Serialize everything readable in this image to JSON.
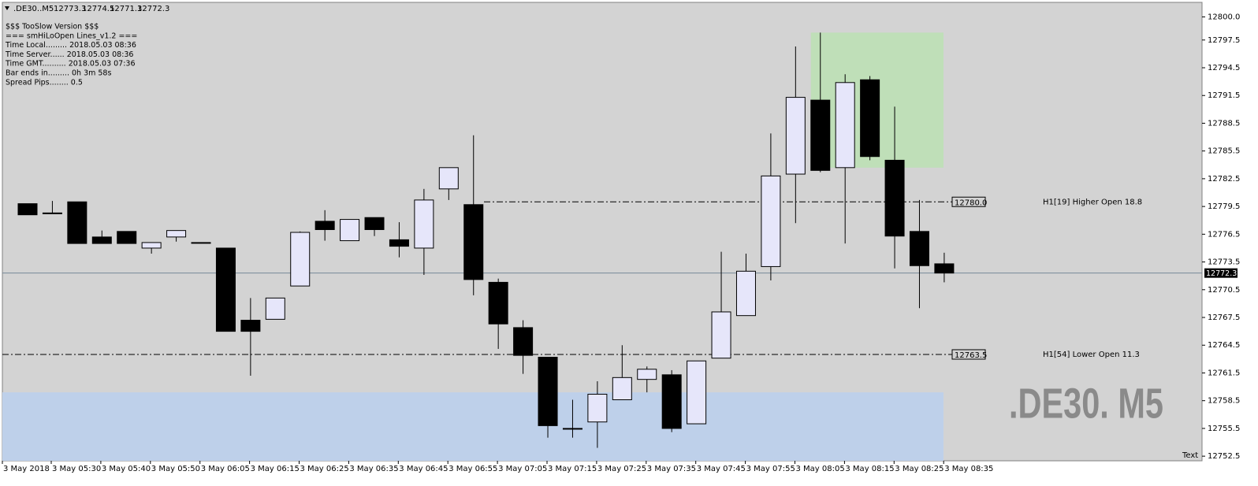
{
  "chart_data": {
    "type": "candlestick",
    "symbol": ".DE30..M5",
    "watermark": ".DE30. M5",
    "corner_text": "Text",
    "info_lines": [
      "$$$ TooSlow Version $$$",
      "=== smHiLoOpen Lines_v1.2 ===",
      "Time Local......... 2018.05.03 08:36",
      "Time Server...... 2018.05.03 08:36",
      "Time GMT.......... 2018.05.03 07:36",
      "Bar ends in......... 0h 3m 58s",
      "Spread Pips........ 0.5"
    ],
    "x_labels": [
      "3 May 2018",
      "3 May 05:30",
      "3 May 05:40",
      "3 May 05:50",
      "3 May 06:05",
      "3 May 06:15",
      "3 May 06:25",
      "3 May 06:35",
      "3 May 06:45",
      "3 May 06:55",
      "3 May 07:05",
      "3 May 07:15",
      "3 May 07:25",
      "3 May 07:35",
      "3 May 07:45",
      "3 May 07:55",
      "3 May 08:05",
      "3 May 08:15",
      "3 May 08:25",
      "3 May 08:35"
    ],
    "open": [
      12779.8,
      12778.8,
      12780.0,
      12776.2,
      12776.8,
      12775.0,
      12776.2,
      12775.6,
      12775.0,
      12767.2,
      12767.3,
      12770.9,
      12777.9,
      12775.8,
      12778.3,
      12775.9,
      12775.0,
      12781.4,
      12779.7,
      12771.3,
      12766.4,
      12763.2,
      12755.5,
      12756.2,
      12758.6,
      12760.8,
      12761.3,
      12756.0,
      12763.1,
      12767.7,
      12773.0,
      12783.0,
      12791.0,
      12783.7,
      12793.2,
      12784.5,
      12776.8,
      12773.3
    ],
    "high": [
      12779.8,
      12780.1,
      12780.0,
      12776.9,
      12776.8,
      12775.6,
      12776.9,
      12775.6,
      12775.0,
      12769.6,
      12769.6,
      12776.8,
      12779.1,
      12778.1,
      12778.3,
      12777.8,
      12781.4,
      12783.7,
      12787.2,
      12771.7,
      12767.2,
      12763.2,
      12758.6,
      12760.6,
      12764.5,
      12762.2,
      12761.8,
      12762.8,
      12774.6,
      12774.4,
      12787.4,
      12796.8,
      12798.3,
      12793.8,
      12793.6,
      12790.3,
      12780.2,
      12774.5
    ],
    "low": [
      12778.6,
      12778.8,
      12775.5,
      12775.5,
      12775.5,
      12774.4,
      12775.7,
      12775.6,
      12766.0,
      12761.2,
      12767.3,
      12770.9,
      12775.8,
      12775.8,
      12776.3,
      12774.0,
      12772.1,
      12780.2,
      12769.9,
      12764.1,
      12761.4,
      12754.5,
      12754.5,
      12753.4,
      12758.6,
      12759.4,
      12755.1,
      12756.0,
      12763.1,
      12767.7,
      12771.5,
      12777.7,
      12783.2,
      12775.5,
      12784.5,
      12772.8,
      12768.5,
      12771.3
    ],
    "close": [
      12778.6,
      12778.8,
      12775.5,
      12775.5,
      12775.5,
      12775.6,
      12776.9,
      12775.6,
      12766.0,
      12766.0,
      12769.6,
      12776.7,
      12777.0,
      12778.1,
      12777.0,
      12775.2,
      12780.2,
      12783.7,
      12771.6,
      12766.8,
      12763.4,
      12755.8,
      12755.5,
      12759.2,
      12761.0,
      12761.9,
      12755.5,
      12762.8,
      12768.1,
      12772.5,
      12782.8,
      12791.3,
      12783.4,
      12792.9,
      12784.9,
      12776.3,
      12773.1,
      12772.3
    ],
    "up_color": "#e6e6fa",
    "down_color": "#000000",
    "ylim": [
      12752.0,
      12801.4
    ],
    "yticks": [
      {
        "value": 12800,
        "label": "12800.0"
      },
      12797.5,
      12794.5,
      12791.5,
      12788.5,
      12785.5,
      12782.5,
      12779.5,
      12776.5,
      12773.5,
      12770.5,
      12767.5,
      12764.5,
      12761.5,
      12758.5,
      12755.5,
      12752.5
    ],
    "levels": [
      {
        "value": 12780,
        "value_label": "12780.0",
        "text": "H1[19] Higher Open 18.8"
      },
      {
        "value": 12763.5,
        "text": "H1[54] Lower Open 11.3"
      }
    ],
    "zones": [
      {
        "top": 12798.3,
        "bottom": 12783.7,
        "color": "#bfdfb8"
      },
      {
        "top": 12759.4,
        "bottom": 12752.0,
        "color": "#bed0ea"
      }
    ]
  }
}
